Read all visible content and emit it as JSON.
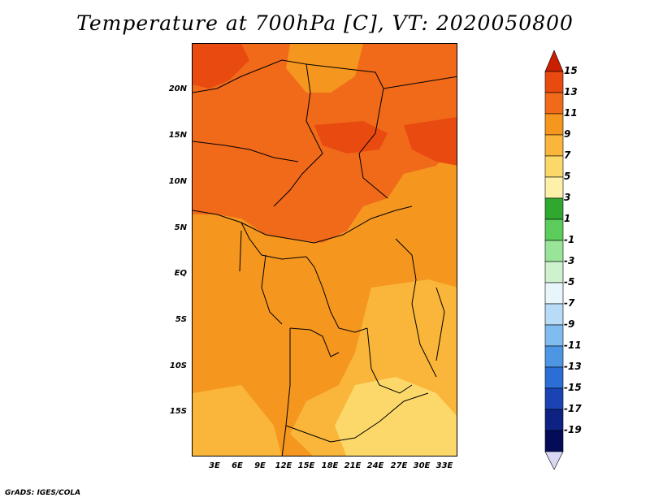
{
  "title": "Temperature at 700hPa [C], VT: 2020050800",
  "footer": "GrADS: IGES/COLA",
  "lat_labels": [
    "20N",
    "15N",
    "10N",
    "5N",
    "EQ",
    "5S",
    "10S",
    "15S"
  ],
  "lat_values": [
    20,
    15,
    10,
    5,
    0,
    -5,
    -10,
    -15
  ],
  "lon_labels": [
    "3E",
    "6E",
    "9E",
    "12E",
    "15E",
    "18E",
    "21E",
    "24E",
    "27E",
    "30E",
    "33E"
  ],
  "lon_values": [
    3,
    6,
    9,
    12,
    15,
    18,
    21,
    24,
    27,
    30,
    33
  ],
  "colorbar": {
    "labels": [
      "15",
      "13",
      "11",
      "9",
      "7",
      "5",
      "3",
      "1",
      "-1",
      "-3",
      "-5",
      "-7",
      "-9",
      "-11",
      "-13",
      "-15",
      "-17",
      "-19"
    ],
    "colors": [
      "#c82000",
      "#e84a10",
      "#f06a1a",
      "#f5961e",
      "#f9b63a",
      "#fcd86a",
      "#fdf0a8",
      "#2ea82e",
      "#5ccc5c",
      "#98e498",
      "#cdf2cd",
      "#e8f6fc",
      "#b8dcf8",
      "#80bcf0",
      "#4c96e4",
      "#2a6ed6",
      "#1a44b4",
      "#0e2284",
      "#040c5a",
      "#d8d8f4"
    ]
  }
}
